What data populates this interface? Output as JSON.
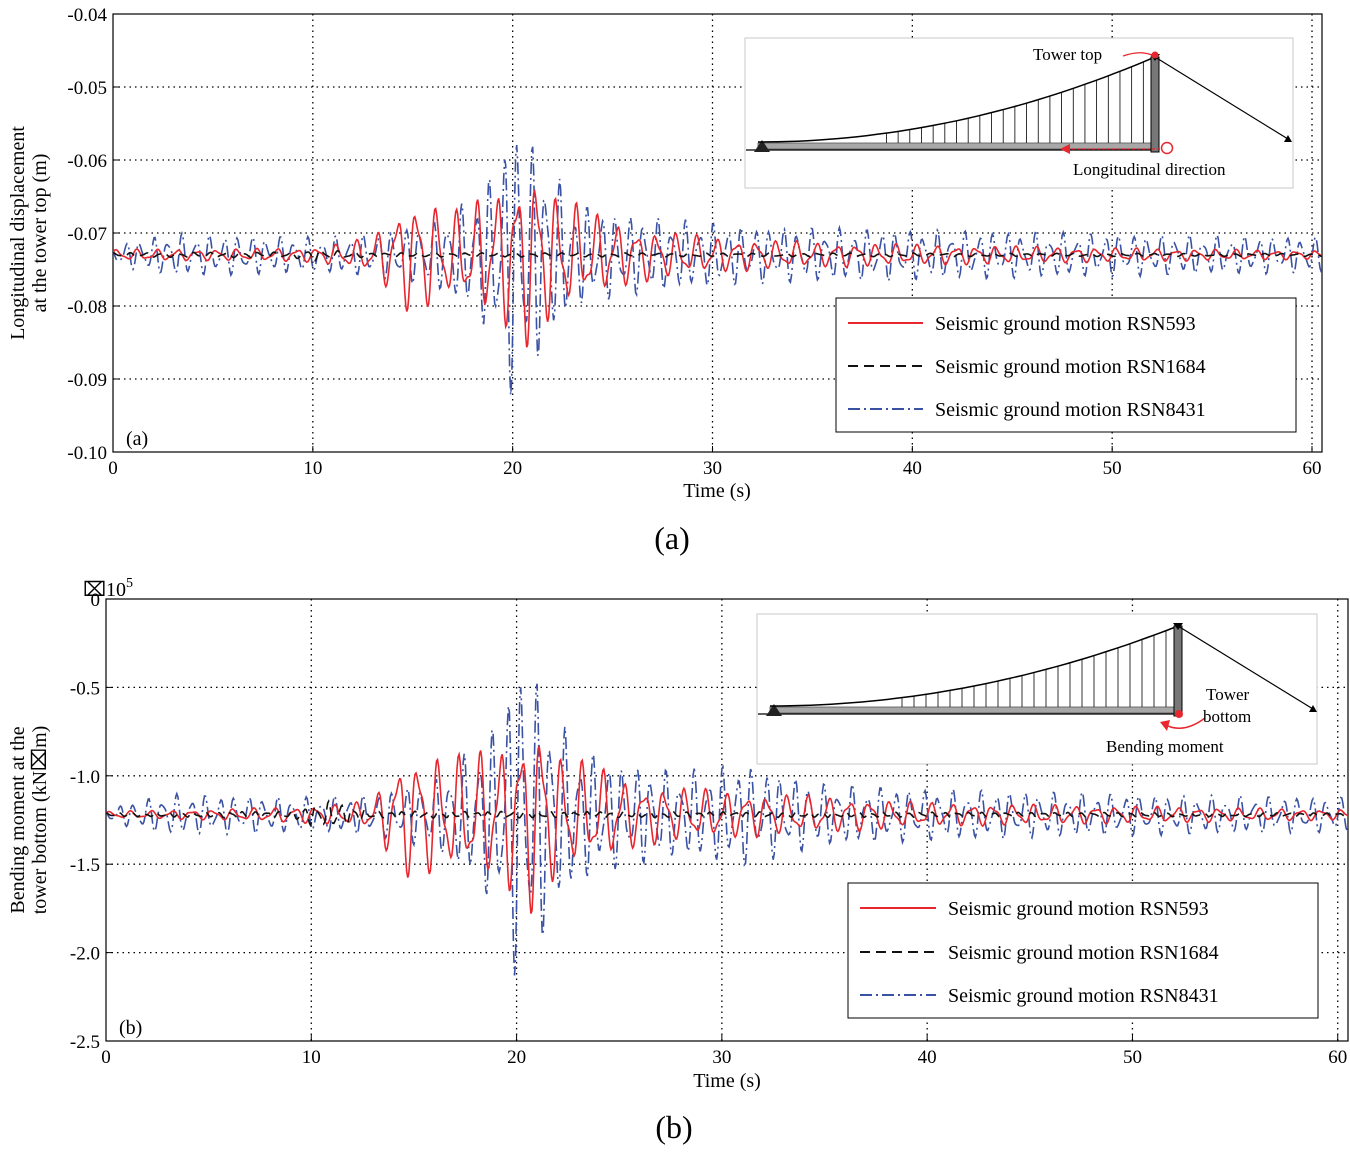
{
  "figure": {
    "panels": [
      {
        "caption": "(a)"
      },
      {
        "caption": "(b)"
      }
    ]
  },
  "chart_data": [
    {
      "type": "line",
      "panel_label": "(a)",
      "xlabel": "Time (s)",
      "ylabel_lines": [
        "Longitudinal displacement",
        "at the tower top (m)"
      ],
      "xlim": [
        0,
        60.5
      ],
      "ylim": [
        -0.1,
        -0.04
      ],
      "y_reversed": true,
      "grid": true,
      "xticks": [
        0,
        10,
        20,
        30,
        40,
        50,
        60
      ],
      "xtick_labels": [
        "0",
        "10",
        "20",
        "30",
        "40",
        "50",
        "60"
      ],
      "yticks": [
        -0.04,
        -0.05,
        -0.06,
        -0.07,
        -0.08,
        -0.09,
        -0.1
      ],
      "ytick_labels": [
        "-0.04",
        "-0.05",
        "-0.06",
        "-0.07",
        "-0.08",
        "-0.09",
        "-0.10"
      ],
      "legend_position": "bottom-right",
      "series": [
        {
          "name": "Seismic ground motion RSN593",
          "color": "#e8262e",
          "style": "solid",
          "baseline": -0.073,
          "dt": 0.05,
          "envelope": [
            [
              0,
              0.0008
            ],
            [
              5,
              0.0008
            ],
            [
              10,
              0.001
            ],
            [
              13,
              0.0025
            ],
            [
              14,
              0.006
            ],
            [
              15,
              0.0085
            ],
            [
              16,
              0.0075
            ],
            [
              17,
              0.006
            ],
            [
              18,
              0.0075
            ],
            [
              19,
              0.009
            ],
            [
              20,
              0.011
            ],
            [
              21,
              0.0135
            ],
            [
              22,
              0.009
            ],
            [
              23,
              0.0075
            ],
            [
              24,
              0.006
            ],
            [
              26,
              0.004
            ],
            [
              30,
              0.0025
            ],
            [
              35,
              0.0018
            ],
            [
              40,
              0.0015
            ],
            [
              50,
              0.001
            ],
            [
              60.5,
              0.0006
            ]
          ],
          "periods": [
            1.0,
            0.55
          ],
          "phase": 0.3
        },
        {
          "name": "Seismic ground motion RSN1684",
          "color": "#111111",
          "style": "dashed",
          "baseline": -0.073,
          "dt": 0.05,
          "envelope": [
            [
              0,
              0.0003
            ],
            [
              9,
              0.0004
            ],
            [
              10,
              0.0009
            ],
            [
              11,
              0.0006
            ],
            [
              13,
              0.0003
            ],
            [
              60.5,
              0.0002
            ]
          ],
          "periods": [
            0.8,
            0.45
          ],
          "phase": 1.1
        },
        {
          "name": "Seismic ground motion RSN8431",
          "color": "#3a52a4",
          "style": "dashdot",
          "baseline": -0.073,
          "dt": 0.05,
          "envelope": [
            [
              0,
              0.0015
            ],
            [
              3,
              0.003
            ],
            [
              10,
              0.0025
            ],
            [
              13,
              0.003
            ],
            [
              16,
              0.0045
            ],
            [
              18,
              0.008
            ],
            [
              19,
              0.012
            ],
            [
              20,
              0.02
            ],
            [
              21,
              0.016
            ],
            [
              22,
              0.012
            ],
            [
              23,
              0.0075
            ],
            [
              25,
              0.006
            ],
            [
              28,
              0.005
            ],
            [
              32,
              0.004
            ],
            [
              40,
              0.0035
            ],
            [
              50,
              0.003
            ],
            [
              60.5,
              0.0025
            ]
          ],
          "periods": [
            0.7,
            0.45
          ],
          "phase": 2.0
        }
      ],
      "inset": {
        "labels": [
          "Tower top",
          "Longitudinal direction"
        ]
      }
    },
    {
      "type": "line",
      "panel_label": "(b)",
      "xlabel": "Time (s)",
      "ylabel_lines": [
        "Bending moment at the",
        "tower bottom (kN⌧m)"
      ],
      "y_multiplier": "⌧10",
      "y_multiplier_exp": "5",
      "xlim": [
        0,
        60.5
      ],
      "ylim": [
        -2.5,
        0
      ],
      "grid": true,
      "xticks": [
        0,
        10,
        20,
        30,
        40,
        50,
        60
      ],
      "xtick_labels": [
        "0",
        "10",
        "20",
        "30",
        "40",
        "50",
        "60"
      ],
      "yticks": [
        0,
        -0.5,
        -1.0,
        -1.5,
        -2.0,
        -2.5
      ],
      "ytick_labels": [
        "0",
        "-0.5",
        "-1.0",
        "-1.5",
        "-2.0",
        "-2.5"
      ],
      "legend_position": "bottom-right",
      "series": [
        {
          "name": "Seismic ground motion RSN593",
          "color": "#e8262e",
          "style": "solid",
          "baseline": -1.22,
          "dt": 0.05,
          "envelope": [
            [
              0,
              0.02
            ],
            [
              5,
              0.03
            ],
            [
              10,
              0.05
            ],
            [
              13,
              0.08
            ],
            [
              14,
              0.3
            ],
            [
              15,
              0.38
            ],
            [
              17,
              0.34
            ],
            [
              19,
              0.4
            ],
            [
              20,
              0.48
            ],
            [
              21,
              0.6
            ],
            [
              22,
              0.36
            ],
            [
              24,
              0.28
            ],
            [
              26,
              0.18
            ],
            [
              30,
              0.14
            ],
            [
              36,
              0.1
            ],
            [
              40,
              0.07
            ],
            [
              50,
              0.05
            ],
            [
              60.5,
              0.03
            ]
          ],
          "periods": [
            1.0,
            0.55
          ],
          "phase": 0.3
        },
        {
          "name": "Seismic ground motion RSN1684",
          "color": "#111111",
          "style": "dashed",
          "baseline": -1.22,
          "dt": 0.05,
          "envelope": [
            [
              0,
              0.01
            ],
            [
              9,
              0.02
            ],
            [
              10,
              0.06
            ],
            [
              11,
              0.08
            ],
            [
              12,
              0.05
            ],
            [
              13,
              0.02
            ],
            [
              60.5,
              0.01
            ]
          ],
          "periods": [
            0.6,
            0.35
          ],
          "phase": 1.1
        },
        {
          "name": "Seismic ground motion RSN8431",
          "color": "#3a52a4",
          "style": "dashdot",
          "baseline": -1.22,
          "dt": 0.05,
          "envelope": [
            [
              0,
              0.04
            ],
            [
              3,
              0.12
            ],
            [
              10,
              0.1
            ],
            [
              13,
              0.12
            ],
            [
              16,
              0.2
            ],
            [
              18,
              0.4
            ],
            [
              19,
              0.55
            ],
            [
              20,
              0.95
            ],
            [
              21,
              0.8
            ],
            [
              22,
              0.55
            ],
            [
              23,
              0.4
            ],
            [
              25,
              0.3
            ],
            [
              28,
              0.25
            ],
            [
              31,
              0.3
            ],
            [
              35,
              0.18
            ],
            [
              40,
              0.15
            ],
            [
              50,
              0.12
            ],
            [
              60.5,
              0.1
            ]
          ],
          "periods": [
            0.7,
            0.45
          ],
          "phase": 2.0
        }
      ],
      "inset": {
        "labels": [
          "Tower",
          "bottom",
          "Bending moment"
        ]
      }
    }
  ]
}
